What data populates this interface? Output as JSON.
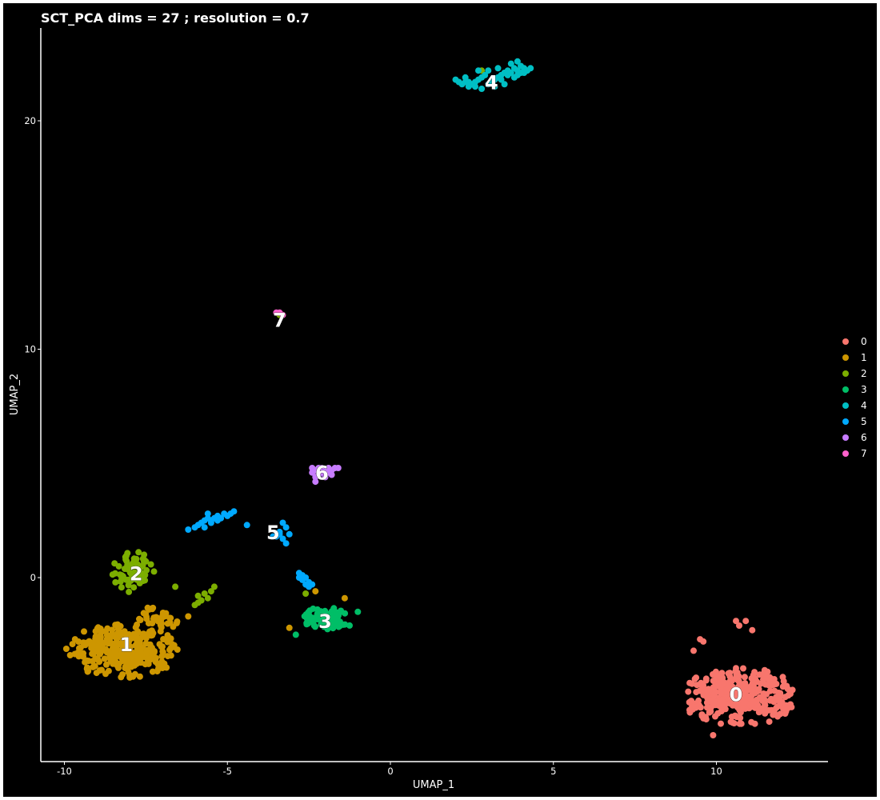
{
  "chart_data": {
    "type": "scatter",
    "title": "SCT_PCA dims =  27 ; resolution = 0.7",
    "xlabel": "UMAP_1",
    "ylabel": "UMAP_2",
    "xlim": [
      -10.5,
      13.2
    ],
    "ylim": [
      -8.0,
      24.0
    ],
    "xticks": [
      -10,
      -5,
      0,
      5,
      10
    ],
    "yticks": [
      0,
      10,
      20
    ],
    "background": "#000000",
    "legend": {
      "position": "right",
      "entries": [
        "0",
        "1",
        "2",
        "3",
        "4",
        "5",
        "6",
        "7"
      ]
    },
    "clusters": [
      {
        "name": "0",
        "color": "#F8766D",
        "label_pos": [
          10.6,
          -5.1
        ],
        "blobs": [
          {
            "cx": 10.7,
            "cy": -5.2,
            "rx": 1.8,
            "ry": 1.3,
            "n": 320
          }
        ],
        "points": [
          [
            10.6,
            -1.9
          ],
          [
            10.9,
            -1.9
          ],
          [
            10.7,
            -2.1
          ],
          [
            11.1,
            -2.3
          ],
          [
            9.5,
            -2.7
          ],
          [
            9.6,
            -2.8
          ],
          [
            9.3,
            -3.2
          ],
          [
            9.9,
            -6.9
          ]
        ]
      },
      {
        "name": "1",
        "color": "#CD9600",
        "label_pos": [
          -8.1,
          -2.9
        ],
        "blobs": [
          {
            "cx": -8.2,
            "cy": -3.2,
            "rx": 1.75,
            "ry": 1.2,
            "n": 300
          },
          {
            "cx": -7.1,
            "cy": -1.9,
            "rx": 0.7,
            "ry": 0.7,
            "n": 40
          }
        ],
        "points": [
          [
            -6.2,
            -1.7
          ],
          [
            -3.1,
            -2.2
          ],
          [
            -1.4,
            -0.9
          ],
          [
            -2.3,
            -0.6
          ]
        ]
      },
      {
        "name": "2",
        "color": "#7CAE00",
        "label_pos": [
          -7.8,
          0.2
        ],
        "blobs": [
          {
            "cx": -7.9,
            "cy": 0.3,
            "rx": 0.65,
            "ry": 0.95,
            "n": 70
          }
        ],
        "points": [
          [
            -5.9,
            -0.8
          ],
          [
            -5.7,
            -0.7
          ],
          [
            -5.6,
            -0.9
          ],
          [
            -5.8,
            -1.0
          ],
          [
            -5.5,
            -0.6
          ],
          [
            -5.4,
            -0.4
          ],
          [
            -5.9,
            -1.1
          ],
          [
            -6.0,
            -1.2
          ],
          [
            -6.6,
            -0.4
          ],
          [
            -2.6,
            -0.7
          ],
          [
            2.8,
            22.2
          ],
          [
            -3.4,
            11.5
          ]
        ]
      },
      {
        "name": "3",
        "color": "#00BE67",
        "label_pos": [
          -2.0,
          -1.9
        ],
        "blobs": [
          {
            "cx": -1.9,
            "cy": -1.8,
            "rx": 0.8,
            "ry": 0.55,
            "n": 85
          }
        ],
        "points": [
          [
            -2.9,
            -2.5
          ],
          [
            -1.0,
            -1.5
          ]
        ]
      },
      {
        "name": "4",
        "color": "#00BFC4",
        "label_pos": [
          3.1,
          21.7
        ],
        "points": [
          [
            2.0,
            21.8
          ],
          [
            2.1,
            21.7
          ],
          [
            2.2,
            21.6
          ],
          [
            2.3,
            21.7
          ],
          [
            2.4,
            21.5
          ],
          [
            2.5,
            21.6
          ],
          [
            2.6,
            21.7
          ],
          [
            2.7,
            21.8
          ],
          [
            2.8,
            21.9
          ],
          [
            2.9,
            22.0
          ],
          [
            3.0,
            21.6
          ],
          [
            3.1,
            21.7
          ],
          [
            3.2,
            21.8
          ],
          [
            3.3,
            21.9
          ],
          [
            3.4,
            22.0
          ],
          [
            3.5,
            22.1
          ],
          [
            3.6,
            22.2
          ],
          [
            3.7,
            22.1
          ],
          [
            3.8,
            22.3
          ],
          [
            3.9,
            22.2
          ],
          [
            4.0,
            22.4
          ],
          [
            4.1,
            22.3
          ],
          [
            4.2,
            22.2
          ],
          [
            4.3,
            22.3
          ],
          [
            3.3,
            22.3
          ],
          [
            3.6,
            22.0
          ],
          [
            2.6,
            21.5
          ],
          [
            2.8,
            21.4
          ],
          [
            3.2,
            21.5
          ],
          [
            3.5,
            21.6
          ],
          [
            3.9,
            22.0
          ],
          [
            4.1,
            22.1
          ],
          [
            3.0,
            22.2
          ],
          [
            3.7,
            22.5
          ],
          [
            3.9,
            22.6
          ],
          [
            2.3,
            21.9
          ],
          [
            2.4,
            21.7
          ],
          [
            2.7,
            22.2
          ],
          [
            3.4,
            21.8
          ],
          [
            3.8,
            21.9
          ],
          [
            4.0,
            22.1
          ]
        ]
      },
      {
        "name": "5",
        "color": "#00A9FF",
        "label_pos": [
          -3.6,
          2.0
        ],
        "points": [
          [
            -6.2,
            2.1
          ],
          [
            -6.0,
            2.2
          ],
          [
            -5.9,
            2.3
          ],
          [
            -5.8,
            2.4
          ],
          [
            -5.7,
            2.5
          ],
          [
            -5.6,
            2.6
          ],
          [
            -5.5,
            2.5
          ],
          [
            -5.4,
            2.6
          ],
          [
            -5.3,
            2.7
          ],
          [
            -5.2,
            2.6
          ],
          [
            -5.1,
            2.8
          ],
          [
            -5.0,
            2.7
          ],
          [
            -4.9,
            2.8
          ],
          [
            -4.8,
            2.9
          ],
          [
            -5.7,
            2.2
          ],
          [
            -5.5,
            2.4
          ],
          [
            -5.3,
            2.5
          ],
          [
            -5.6,
            2.8
          ],
          [
            -4.4,
            2.3
          ],
          [
            -3.3,
            2.4
          ],
          [
            -3.2,
            2.2
          ],
          [
            -3.4,
            2.0
          ],
          [
            -3.5,
            1.8
          ],
          [
            -3.3,
            1.7
          ],
          [
            -3.2,
            1.5
          ],
          [
            -3.4,
            1.9
          ],
          [
            -3.1,
            1.9
          ],
          [
            -3.6,
            1.8
          ],
          [
            -2.8,
            0.2
          ],
          [
            -2.7,
            0.1
          ],
          [
            -2.6,
            0.0
          ],
          [
            -2.7,
            -0.1
          ],
          [
            -2.5,
            -0.2
          ],
          [
            -2.6,
            -0.3
          ],
          [
            -2.5,
            -0.4
          ],
          [
            -2.4,
            -0.3
          ],
          [
            -2.8,
            0.0
          ]
        ]
      },
      {
        "name": "6",
        "color": "#C77CFF",
        "label_pos": [
          -2.1,
          4.6
        ],
        "points": [
          [
            -2.4,
            4.6
          ],
          [
            -2.3,
            4.7
          ],
          [
            -2.2,
            4.5
          ],
          [
            -2.1,
            4.6
          ],
          [
            -2.0,
            4.7
          ],
          [
            -1.9,
            4.8
          ],
          [
            -1.8,
            4.7
          ],
          [
            -1.7,
            4.8
          ],
          [
            -2.3,
            4.4
          ],
          [
            -2.2,
            4.8
          ],
          [
            -2.0,
            4.4
          ],
          [
            -1.8,
            4.5
          ],
          [
            -2.3,
            4.2
          ],
          [
            -1.9,
            4.6
          ],
          [
            -2.1,
            4.8
          ],
          [
            -1.6,
            4.8
          ],
          [
            -2.4,
            4.8
          ]
        ]
      },
      {
        "name": "7",
        "color": "#FF61CC",
        "label_pos": [
          -3.4,
          11.3
        ],
        "points": [
          [
            -3.5,
            11.6
          ],
          [
            -3.4,
            11.6
          ],
          [
            -3.3,
            11.5
          ]
        ]
      }
    ]
  }
}
